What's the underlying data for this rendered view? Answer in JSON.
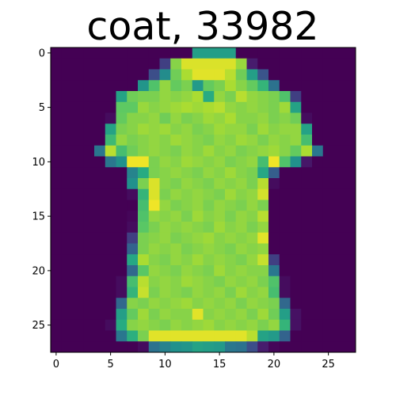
{
  "chart_data": {
    "type": "heatmap",
    "title": "coat, 33982",
    "xlabel": "",
    "ylabel": "",
    "xlim": [
      -0.5,
      27.5
    ],
    "ylim": [
      27.5,
      -0.5
    ],
    "x_ticks": [
      "0",
      "5",
      "10",
      "15",
      "20",
      "25"
    ],
    "y_ticks": [
      "0",
      "5",
      "10",
      "15",
      "20",
      "25"
    ],
    "colormap": "viridis",
    "value_range": [
      0,
      1
    ],
    "rows": 28,
    "cols": 28,
    "values": [
      [
        0,
        0,
        0,
        0,
        0,
        0,
        0,
        0,
        0,
        0,
        0,
        0,
        0,
        0.56,
        0.56,
        0.56,
        0.56,
        0,
        0,
        0,
        0,
        0,
        0,
        0,
        0,
        0,
        0,
        0
      ],
      [
        0,
        0,
        0,
        0,
        0,
        0,
        0,
        0,
        0,
        0,
        0.2,
        0.82,
        0.95,
        0.95,
        0.95,
        0.95,
        0.95,
        0.85,
        0.1,
        0,
        0,
        0,
        0,
        0,
        0,
        0,
        0,
        0
      ],
      [
        0,
        0,
        0,
        0,
        0,
        0,
        0,
        0,
        0,
        0.24,
        0.48,
        0.78,
        0.88,
        0.96,
        0.96,
        0.96,
        0.9,
        0.78,
        0.56,
        0.26,
        0,
        0,
        0,
        0,
        0,
        0,
        0,
        0
      ],
      [
        0,
        0,
        0,
        0,
        0,
        0,
        0,
        0,
        0.52,
        0.72,
        0.84,
        0.76,
        0.8,
        0.54,
        0.76,
        0.8,
        0.88,
        0.82,
        0.76,
        0.66,
        0.38,
        0,
        0,
        0,
        0,
        0,
        0,
        0
      ],
      [
        0,
        0,
        0,
        0,
        0,
        0,
        0.58,
        0.78,
        0.8,
        0.8,
        0.84,
        0.82,
        0.84,
        0.88,
        0.62,
        0.84,
        0.8,
        0.9,
        0.84,
        0.82,
        0.8,
        0.72,
        0.2,
        0,
        0,
        0,
        0,
        0
      ],
      [
        0,
        0,
        0,
        0,
        0,
        0,
        0.75,
        0.75,
        0.85,
        0.82,
        0.84,
        0.86,
        0.88,
        0.86,
        0.88,
        0.9,
        0.84,
        0.82,
        0.84,
        0.82,
        0.8,
        0.86,
        0.58,
        0,
        0,
        0,
        0,
        0
      ],
      [
        0,
        0,
        0,
        0,
        0,
        0.04,
        0.76,
        0.82,
        0.82,
        0.84,
        0.78,
        0.84,
        0.8,
        0.82,
        0.86,
        0.84,
        0.88,
        0.82,
        0.82,
        0.84,
        0.8,
        0.82,
        0.78,
        0.04,
        0,
        0,
        0,
        0
      ],
      [
        0,
        0,
        0,
        0,
        0,
        0.58,
        0.8,
        0.82,
        0.86,
        0.84,
        0.86,
        0.82,
        0.84,
        0.8,
        0.82,
        0.86,
        0.84,
        0.84,
        0.8,
        0.86,
        0.82,
        0.84,
        0.84,
        0.58,
        0,
        0,
        0,
        0
      ],
      [
        0,
        0,
        0,
        0,
        0,
        0.68,
        0.84,
        0.8,
        0.82,
        0.84,
        0.82,
        0.86,
        0.84,
        0.82,
        0.8,
        0.84,
        0.82,
        0.86,
        0.84,
        0.8,
        0.84,
        0.82,
        0.84,
        0.7,
        0,
        0,
        0,
        0
      ],
      [
        0,
        0,
        0,
        0,
        0.4,
        0.9,
        0.7,
        0.78,
        0.82,
        0.84,
        0.82,
        0.8,
        0.84,
        0.82,
        0.86,
        0.82,
        0.84,
        0.8,
        0.82,
        0.84,
        0.86,
        0.82,
        0.76,
        0.88,
        0.4,
        0,
        0,
        0
      ],
      [
        0,
        0,
        0,
        0,
        0,
        0.4,
        0.5,
        0.98,
        0.98,
        0.8,
        0.84,
        0.82,
        0.86,
        0.84,
        0.82,
        0.84,
        0.8,
        0.82,
        0.84,
        0.7,
        0.98,
        0.72,
        0.5,
        0.08,
        0,
        0,
        0,
        0
      ],
      [
        0,
        0,
        0,
        0,
        0,
        0,
        0,
        0.45,
        0.62,
        0.8,
        0.82,
        0.84,
        0.82,
        0.8,
        0.84,
        0.82,
        0.86,
        0.82,
        0.8,
        0.6,
        0.3,
        0,
        0,
        0,
        0,
        0,
        0,
        0
      ],
      [
        0,
        0,
        0,
        0,
        0,
        0,
        0,
        0.5,
        0.8,
        0.95,
        0.82,
        0.8,
        0.84,
        0.82,
        0.8,
        0.84,
        0.82,
        0.84,
        0.8,
        0.9,
        0.04,
        0,
        0,
        0,
        0,
        0,
        0,
        0
      ],
      [
        0,
        0,
        0,
        0,
        0,
        0,
        0,
        0.04,
        0.66,
        0.95,
        0.8,
        0.84,
        0.82,
        0.84,
        0.82,
        0.8,
        0.86,
        0.82,
        0.84,
        0.94,
        0,
        0,
        0,
        0,
        0,
        0,
        0,
        0
      ],
      [
        0,
        0,
        0,
        0,
        0,
        0,
        0,
        0,
        0.7,
        0.98,
        0.84,
        0.8,
        0.82,
        0.84,
        0.8,
        0.84,
        0.82,
        0.8,
        0.84,
        0.8,
        0,
        0,
        0,
        0,
        0,
        0,
        0,
        0
      ],
      [
        0,
        0,
        0,
        0,
        0,
        0,
        0,
        0.02,
        0.72,
        0.84,
        0.82,
        0.84,
        0.8,
        0.86,
        0.82,
        0.84,
        0.8,
        0.84,
        0.82,
        0.9,
        0,
        0,
        0,
        0,
        0,
        0,
        0,
        0
      ],
      [
        0,
        0,
        0,
        0,
        0,
        0,
        0,
        0.04,
        0.74,
        0.8,
        0.84,
        0.82,
        0.84,
        0.82,
        0.8,
        0.86,
        0.82,
        0.84,
        0.8,
        0.84,
        0,
        0,
        0,
        0,
        0,
        0,
        0,
        0
      ],
      [
        0,
        0,
        0,
        0,
        0,
        0,
        0,
        0.2,
        0.8,
        0.82,
        0.84,
        0.8,
        0.82,
        0.84,
        0.86,
        0.82,
        0.84,
        0.82,
        0.84,
        0.96,
        0,
        0,
        0,
        0,
        0,
        0,
        0,
        0
      ],
      [
        0,
        0,
        0,
        0,
        0,
        0,
        0,
        0.32,
        0.8,
        0.84,
        0.82,
        0.84,
        0.8,
        0.82,
        0.84,
        0.82,
        0.8,
        0.84,
        0.82,
        0.84,
        0,
        0,
        0,
        0,
        0,
        0,
        0,
        0
      ],
      [
        0,
        0,
        0,
        0,
        0,
        0,
        0,
        0.6,
        0.88,
        0.82,
        0.8,
        0.84,
        0.82,
        0.86,
        0.82,
        0.84,
        0.82,
        0.8,
        0.84,
        0.92,
        0.2,
        0,
        0,
        0,
        0,
        0,
        0,
        0
      ],
      [
        0,
        0,
        0,
        0,
        0,
        0,
        0,
        0.34,
        0.74,
        0.84,
        0.82,
        0.8,
        0.84,
        0.82,
        0.8,
        0.86,
        0.82,
        0.84,
        0.82,
        0.82,
        0.4,
        0,
        0,
        0,
        0,
        0,
        0,
        0
      ],
      [
        0,
        0,
        0,
        0,
        0,
        0,
        0.04,
        0.7,
        0.9,
        0.82,
        0.84,
        0.82,
        0.86,
        0.84,
        0.82,
        0.8,
        0.84,
        0.82,
        0.84,
        0.8,
        0.72,
        0.04,
        0,
        0,
        0,
        0,
        0,
        0
      ],
      [
        0,
        0,
        0,
        0,
        0,
        0,
        0.04,
        0.66,
        0.92,
        0.8,
        0.84,
        0.82,
        0.8,
        0.84,
        0.82,
        0.84,
        0.8,
        0.86,
        0.82,
        0.84,
        0.7,
        0.04,
        0,
        0,
        0,
        0,
        0,
        0
      ],
      [
        0,
        0,
        0,
        0,
        0,
        0,
        0.34,
        0.82,
        0.8,
        0.84,
        0.82,
        0.84,
        0.86,
        0.82,
        0.84,
        0.82,
        0.84,
        0.8,
        0.84,
        0.82,
        0.8,
        0.34,
        0,
        0,
        0,
        0,
        0,
        0
      ],
      [
        0,
        0,
        0,
        0,
        0,
        0,
        0.56,
        0.76,
        0.86,
        0.8,
        0.84,
        0.82,
        0.82,
        0.96,
        0.82,
        0.84,
        0.82,
        0.84,
        0.8,
        0.86,
        0.78,
        0.56,
        0.06,
        0,
        0,
        0,
        0,
        0
      ],
      [
        0,
        0,
        0,
        0,
        0,
        0.04,
        0.62,
        0.82,
        0.84,
        0.82,
        0.8,
        0.84,
        0.82,
        0.84,
        0.86,
        0.82,
        0.84,
        0.82,
        0.84,
        0.8,
        0.84,
        0.66,
        0.06,
        0,
        0,
        0,
        0,
        0
      ],
      [
        0,
        0,
        0,
        0,
        0,
        0,
        0.4,
        0.64,
        0.8,
        0.96,
        0.96,
        0.96,
        0.96,
        0.96,
        0.96,
        0.96,
        0.96,
        0.96,
        0.9,
        0.58,
        0.54,
        0.32,
        0,
        0,
        0,
        0,
        0,
        0
      ],
      [
        0,
        0,
        0,
        0,
        0,
        0,
        0,
        0,
        0.04,
        0.38,
        0.44,
        0.5,
        0.52,
        0.58,
        0.56,
        0.54,
        0.4,
        0.38,
        0.24,
        0.1,
        0.02,
        0,
        0,
        0,
        0,
        0,
        0,
        0
      ]
    ]
  }
}
